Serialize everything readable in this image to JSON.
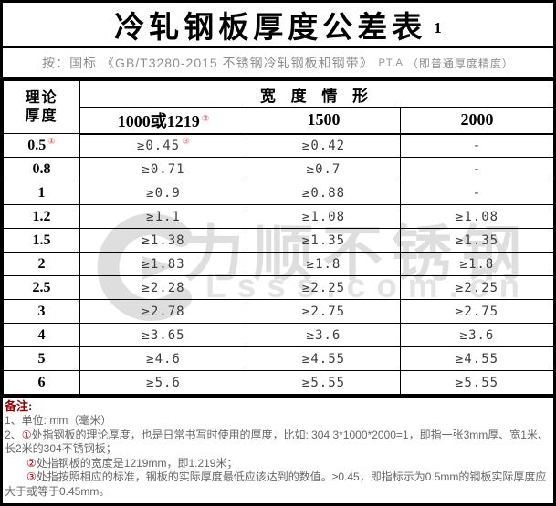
{
  "title": {
    "text": "冷轧钢板厚度公差表",
    "number": "1"
  },
  "subtitle": {
    "prefix": "按：",
    "standard": "国标 《GB/T3280-2015 不锈钢冷轧钢板和钢带》",
    "grade": "PT.A",
    "note": "（即普通厚度精度）"
  },
  "table": {
    "corner_header_line1": "理论",
    "corner_header_line2": "厚度",
    "width_group_header": "宽 度 情 形",
    "width_columns": [
      {
        "label": "1000或1219",
        "sup": "②"
      },
      {
        "label": "1500",
        "sup": ""
      },
      {
        "label": "2000",
        "sup": ""
      }
    ],
    "rows": [
      {
        "thickness": "0.5",
        "sup": "①",
        "c1": "≥0.45",
        "c1_sup": "③",
        "c2": "≥0.42",
        "c3": "-"
      },
      {
        "thickness": "0.8",
        "sup": "",
        "c1": "≥0.71",
        "c1_sup": "",
        "c2": "≥0.7",
        "c3": "-"
      },
      {
        "thickness": "1",
        "sup": "",
        "c1": "≥0.9",
        "c1_sup": "",
        "c2": "≥0.88",
        "c3": "-"
      },
      {
        "thickness": "1.2",
        "sup": "",
        "c1": "≥1.1",
        "c1_sup": "",
        "c2": "≥1.08",
        "c3": "≥1.08"
      },
      {
        "thickness": "1.5",
        "sup": "",
        "c1": "≥1.38",
        "c1_sup": "",
        "c2": "≥1.35",
        "c3": "≥1.35"
      },
      {
        "thickness": "2",
        "sup": "",
        "c1": "≥1.83",
        "c1_sup": "",
        "c2": "≥1.8",
        "c3": "≥1.8"
      },
      {
        "thickness": "2.5",
        "sup": "",
        "c1": "≥2.28",
        "c1_sup": "",
        "c2": "≥2.25",
        "c3": "≥2.25"
      },
      {
        "thickness": "3",
        "sup": "",
        "c1": "≥2.78",
        "c1_sup": "",
        "c2": "≥2.75",
        "c3": "≥2.75"
      },
      {
        "thickness": "4",
        "sup": "",
        "c1": "≥3.65",
        "c1_sup": "",
        "c2": "≥3.6",
        "c3": "≥3.6"
      },
      {
        "thickness": "5",
        "sup": "",
        "c1": "≥4.6",
        "c1_sup": "",
        "c2": "≥4.55",
        "c3": "≥4.55"
      },
      {
        "thickness": "6",
        "sup": "",
        "c1": "≥5.6",
        "c1_sup": "",
        "c2": "≥5.55",
        "c3": "≥5.55"
      }
    ]
  },
  "notes": {
    "title": "备注:",
    "item1": "1、单位: mm（毫米）",
    "item2_prefix": "2、",
    "item2_sup": "①",
    "item2_text": "处指钢板的理论厚度，也是日常书写时使用的厚度，比如: 304 3*1000*2000=1，即指一张3mm厚、宽1米、长2米的304不锈钢板；",
    "item3_sup": "②",
    "item3_text": "处指钢板的宽度是1219mm，即1.219米；",
    "item4_sup": "③",
    "item4_text": "处指按照相应的标准，钢板的实际厚度最低应该达到的数值。≥0.45，即指标示为0.5mm的钢板实际厚度应大于或等于0.45mm。"
  },
  "watermark": {
    "brand": "力顺不锈钢",
    "domain": "Lsss.com.cn"
  },
  "colors": {
    "border": "#000000",
    "subtitle_gray": "#8f8f8f",
    "table_sup_red": "#e06a6a",
    "notes_red": "#990000",
    "notes_gray": "#666666",
    "watermark_gray": "#dedede"
  },
  "chart_data": {
    "type": "table",
    "title": "冷轧钢板厚度公差表 1",
    "columns": [
      "理论厚度",
      "1000或1219",
      "1500",
      "2000"
    ],
    "rows": [
      [
        "0.5",
        "≥0.45",
        "≥0.42",
        "-"
      ],
      [
        "0.8",
        "≥0.71",
        "≥0.7",
        "-"
      ],
      [
        "1",
        "≥0.9",
        "≥0.88",
        "-"
      ],
      [
        "1.2",
        "≥1.1",
        "≥1.08",
        "≥1.08"
      ],
      [
        "1.5",
        "≥1.38",
        "≥1.35",
        "≥1.35"
      ],
      [
        "2",
        "≥1.83",
        "≥1.8",
        "≥1.8"
      ],
      [
        "2.5",
        "≥2.28",
        "≥2.25",
        "≥2.25"
      ],
      [
        "3",
        "≥2.78",
        "≥2.75",
        "≥2.75"
      ],
      [
        "4",
        "≥3.65",
        "≥3.6",
        "≥3.6"
      ],
      [
        "5",
        "≥4.6",
        "≥4.55",
        "≥4.55"
      ],
      [
        "6",
        "≥5.6",
        "≥5.55",
        "≥5.55"
      ]
    ]
  }
}
